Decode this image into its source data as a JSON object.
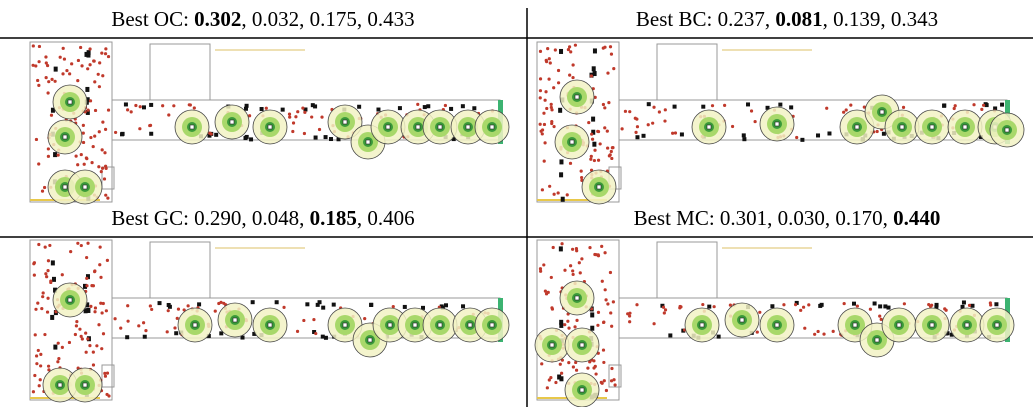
{
  "panels": [
    {
      "caption": [
        {
          "text": "Best OC: "
        },
        {
          "text": "0.302",
          "bold": true
        },
        {
          "text": ", 0.032, 0.175, 0.433"
        }
      ]
    },
    {
      "caption": [
        {
          "text": "Best BC: 0.237, "
        },
        {
          "text": "0.081",
          "bold": true
        },
        {
          "text": ", 0.139, 0.343"
        }
      ]
    },
    {
      "caption": [
        {
          "text": "Best GC: 0.290, 0.048, "
        },
        {
          "text": "0.185",
          "bold": true
        },
        {
          "text": ", 0.406"
        }
      ]
    },
    {
      "caption": [
        {
          "text": "Best MC: 0.301, 0.030, 0.170, "
        },
        {
          "text": "0.440",
          "bold": true
        }
      ]
    }
  ]
}
